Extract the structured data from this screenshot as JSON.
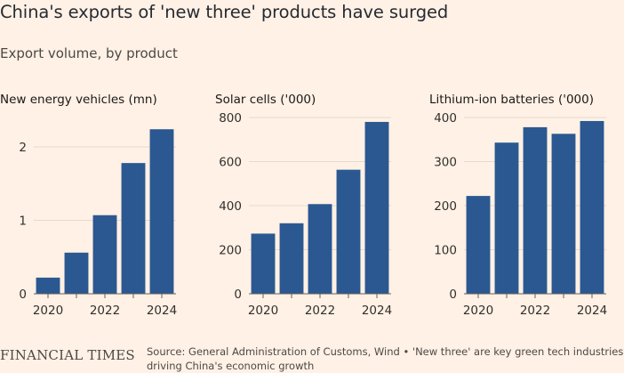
{
  "header": {
    "title": "China's exports of 'new three' products have surged",
    "subtitle": "Export volume, by product"
  },
  "footer": {
    "logo": "FINANCIAL TIMES",
    "source": "Source: General Administration of Customs, Wind • 'New three' are key green tech industries driving China's economic growth"
  },
  "colors": {
    "bar": "#2b5891",
    "background": "#fff1e5",
    "grid": "#e6d9ce",
    "axis": "#66605c",
    "text": "#33302e"
  },
  "chart_data": [
    {
      "type": "bar",
      "title": "New energy vehicles (mn)",
      "categories": [
        "2020",
        "2021",
        "2022",
        "2023",
        "2024"
      ],
      "values": [
        0.22,
        0.56,
        1.07,
        1.78,
        2.24
      ],
      "xtick_labels": [
        "2020",
        "",
        "2022",
        "",
        "2024"
      ],
      "yticks": [
        "0",
        "1",
        "2"
      ],
      "ytick_values": [
        0,
        1,
        2
      ],
      "ylim": [
        0,
        2.5
      ]
    },
    {
      "type": "bar",
      "title": "Solar cells ('000)",
      "categories": [
        "2020",
        "2021",
        "2022",
        "2023",
        "2024"
      ],
      "values": [
        273,
        320,
        407,
        563,
        780
      ],
      "xtick_labels": [
        "2020",
        "",
        "2022",
        "",
        "2024"
      ],
      "yticks": [
        "0",
        "200",
        "400",
        "600",
        "800"
      ],
      "ytick_values": [
        0,
        200,
        400,
        600,
        800
      ],
      "ylim": [
        0,
        800
      ]
    },
    {
      "type": "bar",
      "title": "Lithium-ion batteries ('000)",
      "categories": [
        "2020",
        "2021",
        "2022",
        "2023",
        "2024"
      ],
      "values": [
        222,
        343,
        378,
        363,
        392
      ],
      "xtick_labels": [
        "2020",
        "",
        "2022",
        "",
        "2024"
      ],
      "yticks": [
        "0",
        "100",
        "200",
        "300",
        "400"
      ],
      "ytick_values": [
        0,
        100,
        200,
        300,
        400
      ],
      "ylim": [
        0,
        400
      ]
    }
  ]
}
